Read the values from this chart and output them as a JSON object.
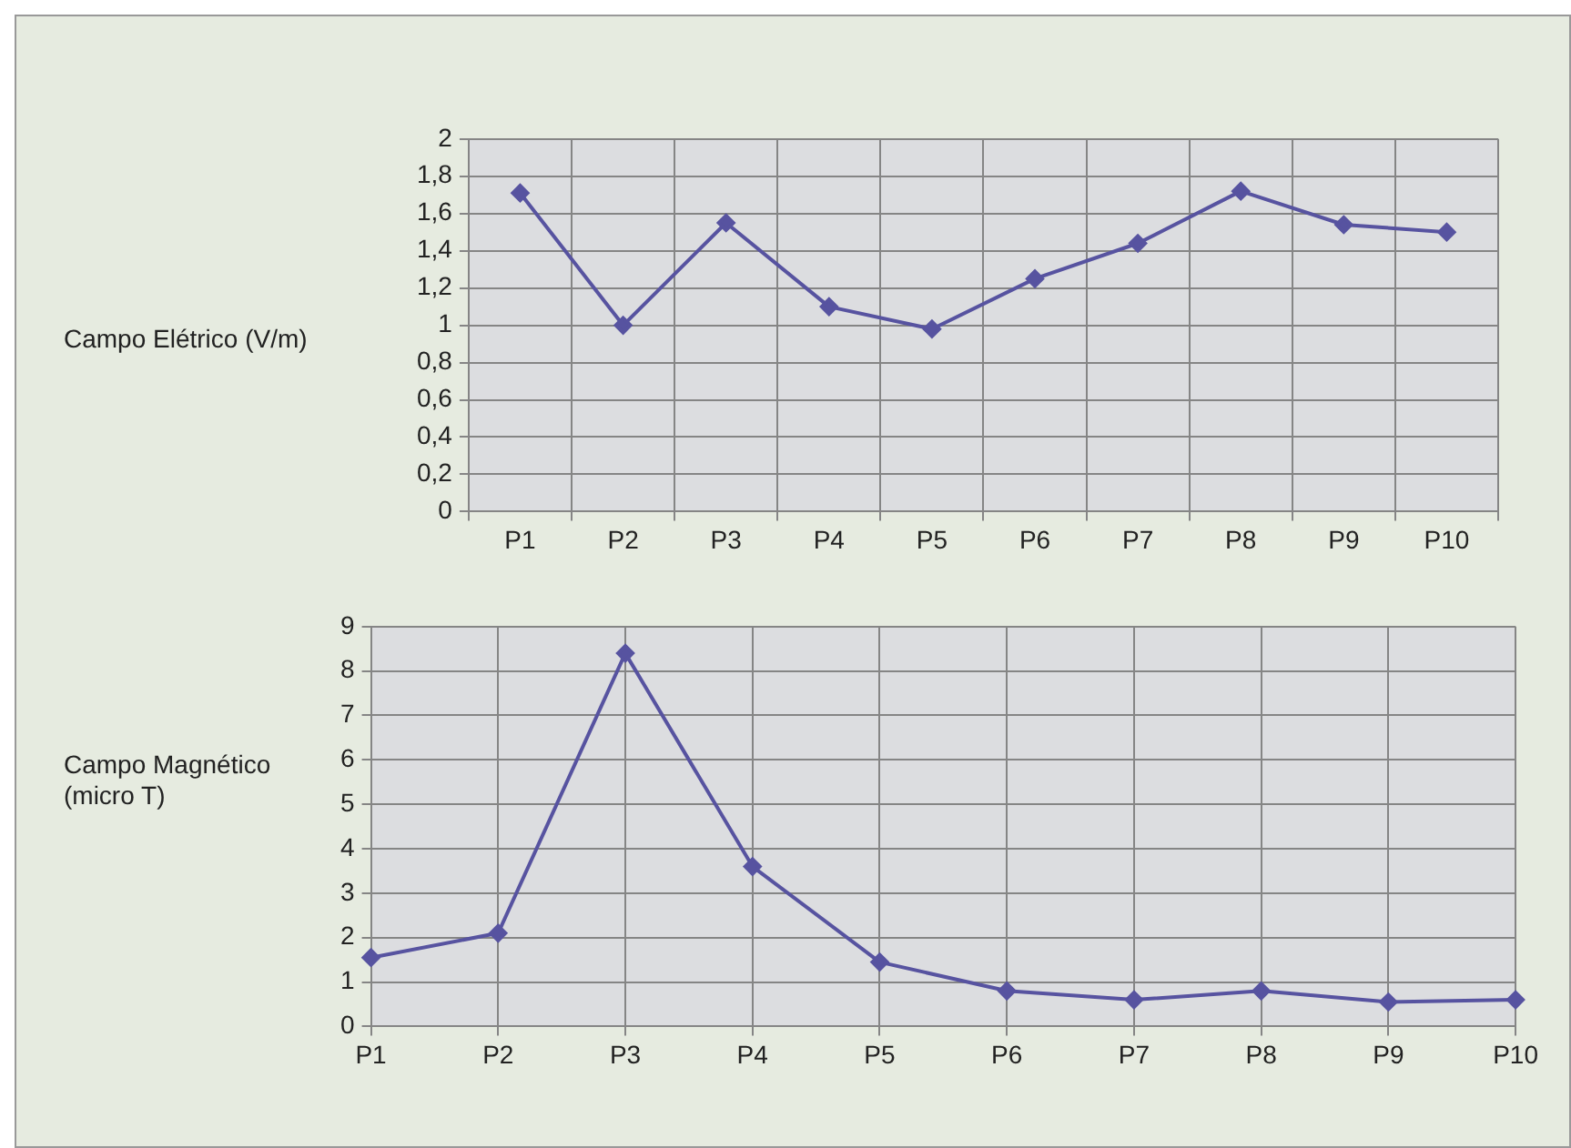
{
  "chart_data": [
    {
      "type": "line",
      "ylabel": "Campo Elétrico (V/m)",
      "categories": [
        "P1",
        "P2",
        "P3",
        "P4",
        "P5",
        "P6",
        "P7",
        "P8",
        "P9",
        "P10"
      ],
      "series": [
        {
          "color": "#5753a0",
          "values": [
            1.71,
            1.0,
            1.55,
            1.1,
            0.98,
            1.25,
            1.44,
            1.72,
            1.54,
            1.5
          ]
        }
      ],
      "ylim": [
        0,
        2
      ],
      "yticks": [
        0,
        {
          "value": 0.2,
          "label": "0,2"
        },
        {
          "value": 0.4,
          "label": "0,4"
        },
        {
          "value": 0.6,
          "label": "0,6"
        },
        {
          "value": 0.8,
          "label": "0,8"
        },
        1,
        {
          "value": 1.2,
          "label": "1,2"
        },
        {
          "value": 1.4,
          "label": "1,4"
        },
        {
          "value": 1.6,
          "label": "1,6"
        },
        {
          "value": 1.8,
          "label": "1,8"
        },
        2
      ],
      "grid": true,
      "legend": false,
      "marker": "diamond",
      "line_style": "solid"
    },
    {
      "type": "line",
      "ylabel": "Campo Magnético\n(micro T)",
      "categories": [
        "P1",
        "P2",
        "P3",
        "P4",
        "P5",
        "P6",
        "P7",
        "P8",
        "P9",
        "P10"
      ],
      "series": [
        {
          "color": "#5753a0",
          "values": [
            1.55,
            2.1,
            8.4,
            3.6,
            1.45,
            0.8,
            0.6,
            0.8,
            0.55,
            0.6
          ]
        }
      ],
      "ylim": [
        0,
        9
      ],
      "yticks": [
        0,
        1,
        2,
        3,
        4,
        5,
        6,
        7,
        8,
        9
      ],
      "grid": true,
      "legend": false,
      "marker": "diamond",
      "line_style": "solid"
    }
  ]
}
